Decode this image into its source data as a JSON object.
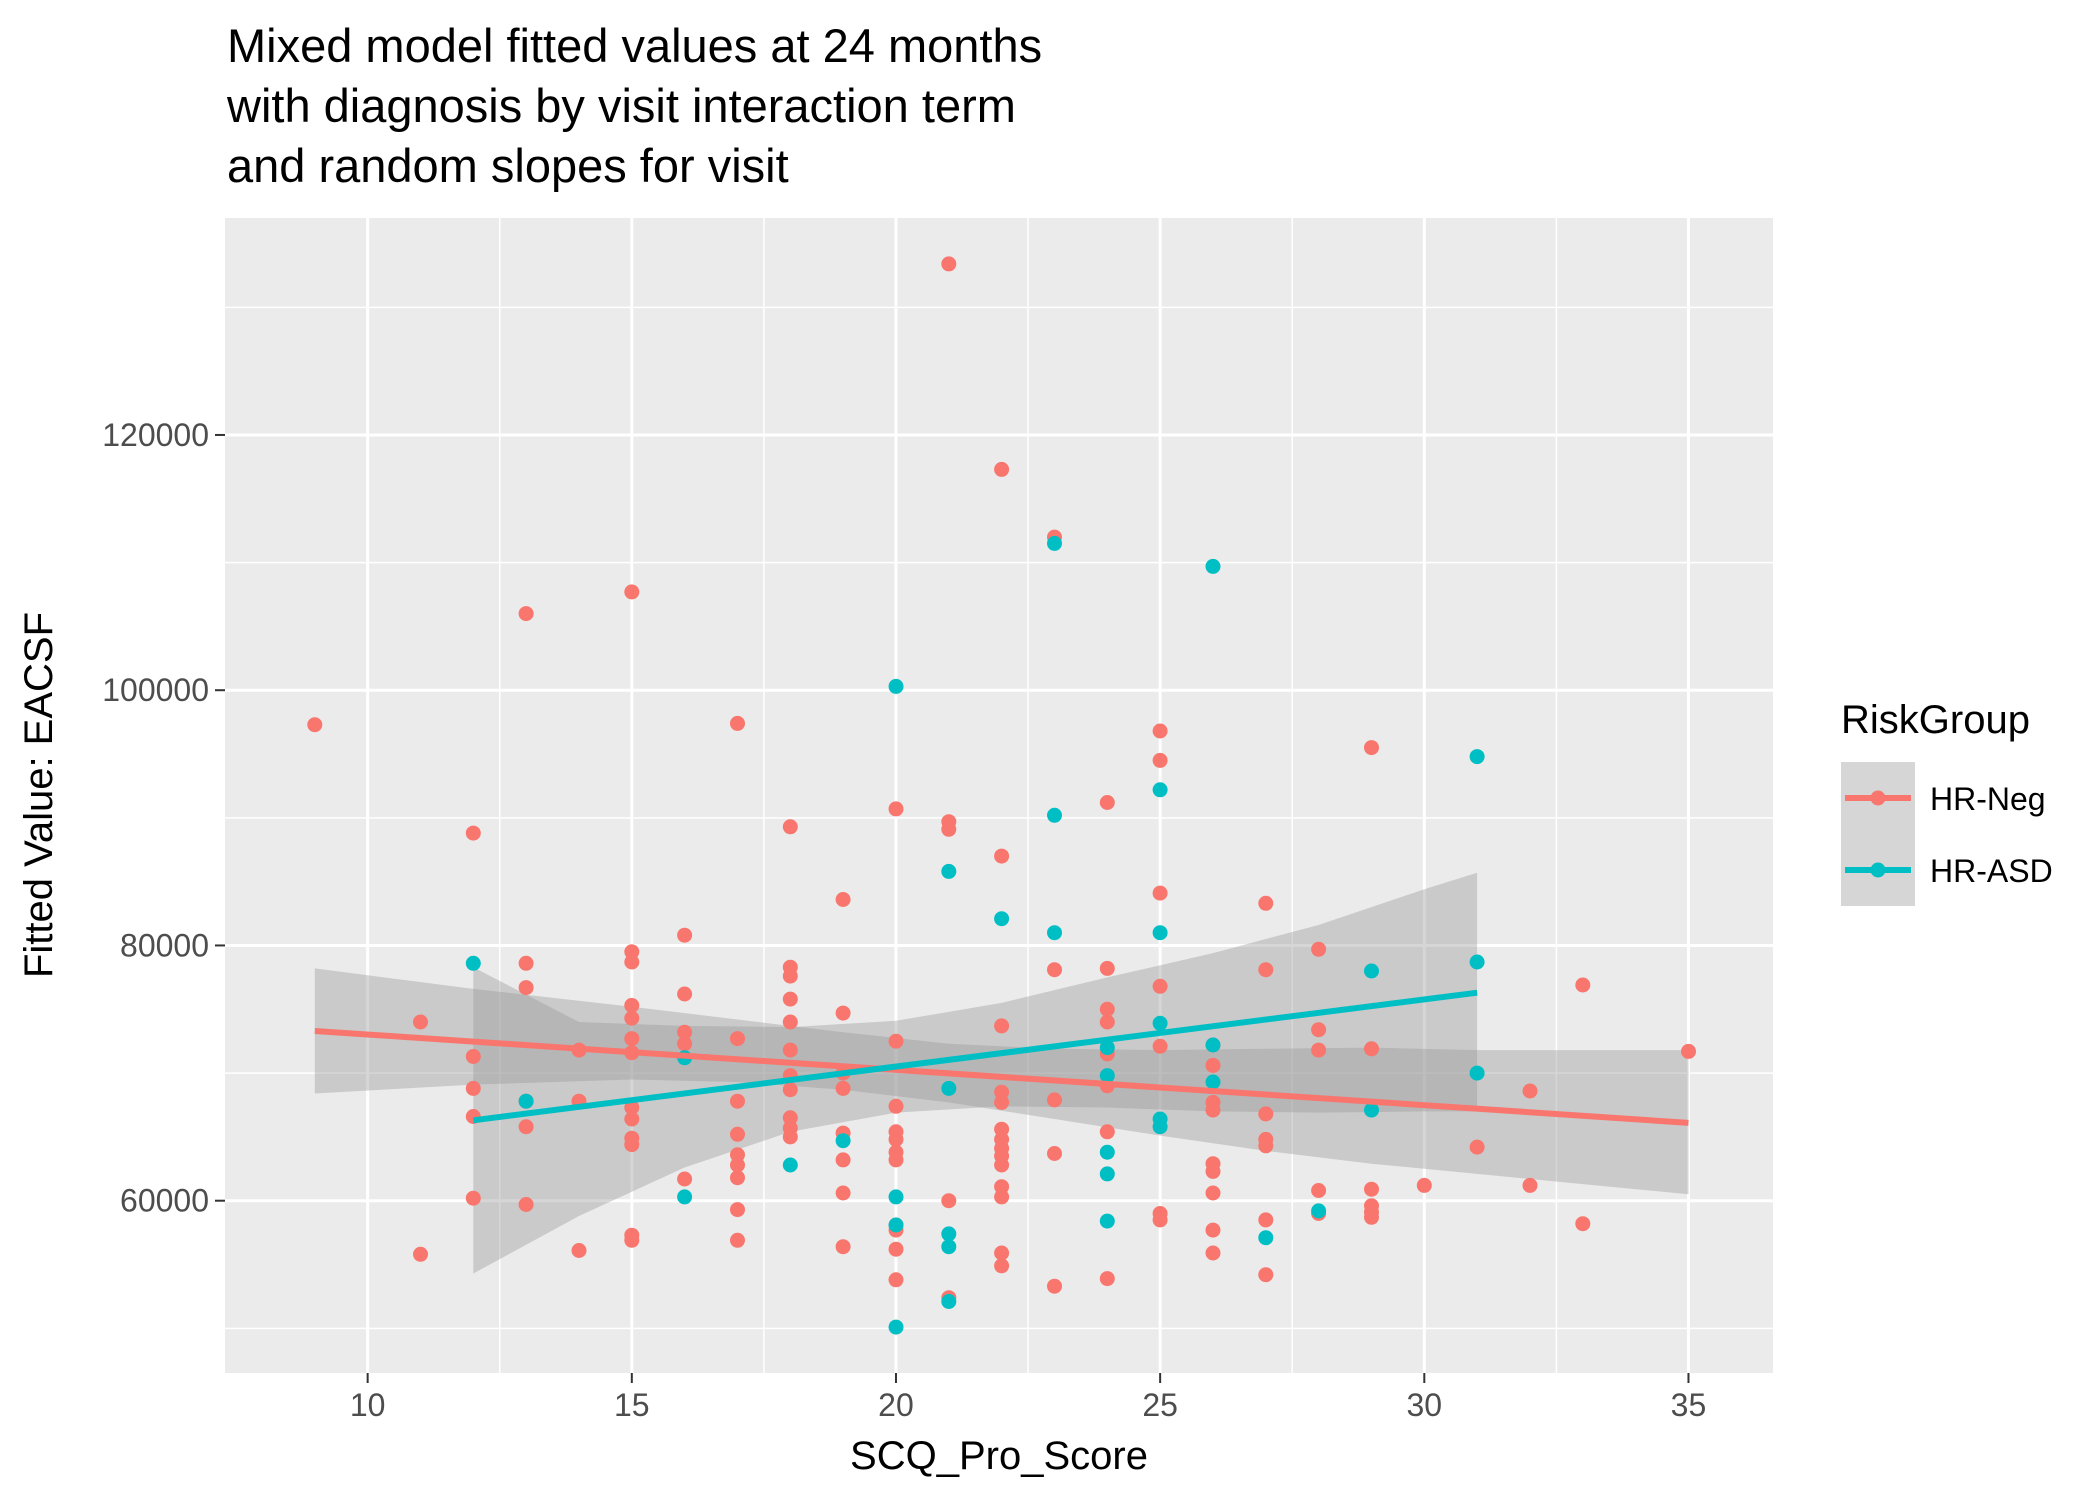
{
  "chart_data": {
    "type": "scatter",
    "title": "Mixed model fitted values at 24 months\nwith diagnosis by visit interaction term\nand random slopes for visit",
    "xlabel": "SCQ_Pro_Score",
    "ylabel": "Fitted Value: EACSF",
    "xlim": [
      7.3,
      36.6
    ],
    "ylim": [
      46500,
      137000
    ],
    "x_ticks": [
      10,
      15,
      20,
      25,
      30,
      35
    ],
    "y_ticks": [
      60000,
      80000,
      100000,
      120000
    ],
    "grid": true,
    "legend": {
      "title": "RiskGroup",
      "position": "right",
      "entries": [
        "HR-Neg",
        "HR-ASD"
      ]
    },
    "colors": {
      "HR-Neg": "#F8766D",
      "HR-ASD": "#00BFC4",
      "panel": "#EBEBEB",
      "grid": "#FFFFFF",
      "ribbon": "#999999"
    },
    "series": [
      {
        "name": "HR-Neg",
        "points": [
          [
            9,
            97300
          ],
          [
            11,
            74000
          ],
          [
            11,
            55800
          ],
          [
            12,
            88800
          ],
          [
            12,
            71300
          ],
          [
            12,
            68800
          ],
          [
            12,
            66600
          ],
          [
            12,
            60200
          ],
          [
            13,
            106000
          ],
          [
            13,
            78600
          ],
          [
            13,
            76700
          ],
          [
            13,
            67800
          ],
          [
            13,
            65800
          ],
          [
            13,
            59700
          ],
          [
            14,
            71800
          ],
          [
            14,
            67800
          ],
          [
            14,
            56100
          ],
          [
            15,
            107700
          ],
          [
            15,
            79500
          ],
          [
            15,
            78700
          ],
          [
            15,
            75300
          ],
          [
            15,
            74300
          ],
          [
            15,
            72700
          ],
          [
            15,
            71600
          ],
          [
            15,
            67300
          ],
          [
            15,
            66400
          ],
          [
            15,
            64900
          ],
          [
            15,
            64400
          ],
          [
            15,
            57300
          ],
          [
            15,
            56900
          ],
          [
            16,
            80800
          ],
          [
            16,
            76200
          ],
          [
            16,
            73200
          ],
          [
            16,
            72300
          ],
          [
            16,
            61700
          ],
          [
            17,
            97400
          ],
          [
            17,
            72700
          ],
          [
            17,
            67800
          ],
          [
            17,
            65200
          ],
          [
            17,
            63600
          ],
          [
            17,
            62800
          ],
          [
            17,
            61800
          ],
          [
            17,
            59300
          ],
          [
            17,
            56900
          ],
          [
            18,
            89300
          ],
          [
            18,
            78300
          ],
          [
            18,
            77600
          ],
          [
            18,
            75800
          ],
          [
            18,
            74000
          ],
          [
            18,
            71800
          ],
          [
            18,
            69800
          ],
          [
            18,
            68700
          ],
          [
            18,
            66500
          ],
          [
            18,
            65700
          ],
          [
            18,
            65000
          ],
          [
            19,
            83600
          ],
          [
            19,
            74700
          ],
          [
            19,
            70000
          ],
          [
            19,
            68800
          ],
          [
            19,
            65300
          ],
          [
            19,
            63200
          ],
          [
            19,
            60600
          ],
          [
            19,
            56400
          ],
          [
            20,
            90700
          ],
          [
            20,
            72500
          ],
          [
            20,
            67400
          ],
          [
            20,
            65400
          ],
          [
            20,
            64800
          ],
          [
            20,
            63800
          ],
          [
            20,
            63200
          ],
          [
            20,
            58100
          ],
          [
            20,
            57700
          ],
          [
            20,
            56200
          ],
          [
            20,
            53800
          ],
          [
            21,
            133400
          ],
          [
            21,
            89700
          ],
          [
            21,
            89100
          ],
          [
            21,
            60000
          ],
          [
            21,
            52400
          ],
          [
            22,
            117300
          ],
          [
            22,
            87000
          ],
          [
            22,
            73700
          ],
          [
            22,
            68500
          ],
          [
            22,
            67700
          ],
          [
            22,
            65600
          ],
          [
            22,
            64800
          ],
          [
            22,
            64100
          ],
          [
            22,
            63500
          ],
          [
            22,
            62800
          ],
          [
            22,
            61100
          ],
          [
            22,
            60300
          ],
          [
            22,
            55900
          ],
          [
            22,
            54900
          ],
          [
            23,
            112000
          ],
          [
            23,
            78100
          ],
          [
            23,
            67900
          ],
          [
            23,
            63700
          ],
          [
            23,
            53300
          ],
          [
            24,
            91200
          ],
          [
            24,
            78200
          ],
          [
            24,
            75000
          ],
          [
            24,
            74000
          ],
          [
            24,
            71500
          ],
          [
            24,
            69000
          ],
          [
            24,
            65400
          ],
          [
            24,
            53900
          ],
          [
            25,
            96800
          ],
          [
            25,
            94500
          ],
          [
            25,
            84100
          ],
          [
            25,
            76800
          ],
          [
            25,
            72100
          ],
          [
            25,
            59000
          ],
          [
            25,
            58500
          ],
          [
            26,
            72200
          ],
          [
            26,
            70600
          ],
          [
            26,
            67700
          ],
          [
            26,
            67100
          ],
          [
            26,
            62900
          ],
          [
            26,
            62300
          ],
          [
            26,
            60600
          ],
          [
            26,
            57700
          ],
          [
            26,
            55900
          ],
          [
            27,
            83300
          ],
          [
            27,
            78100
          ],
          [
            27,
            66800
          ],
          [
            27,
            64800
          ],
          [
            27,
            64300
          ],
          [
            27,
            58500
          ],
          [
            27,
            54200
          ],
          [
            28,
            79700
          ],
          [
            28,
            73400
          ],
          [
            28,
            71800
          ],
          [
            28,
            60800
          ],
          [
            28,
            59000
          ],
          [
            29,
            95500
          ],
          [
            29,
            71900
          ],
          [
            29,
            60900
          ],
          [
            29,
            59600
          ],
          [
            29,
            59100
          ],
          [
            29,
            58700
          ],
          [
            30,
            61200
          ],
          [
            31,
            64200
          ],
          [
            32,
            68600
          ],
          [
            32,
            61200
          ],
          [
            33,
            76900
          ],
          [
            33,
            58200
          ],
          [
            35,
            71700
          ]
        ],
        "trend": {
          "x": [
            9,
            35
          ],
          "y": [
            73300,
            66100
          ]
        },
        "ribbon": {
          "x": [
            9,
            12,
            15,
            17,
            19,
            21,
            23,
            25,
            27,
            29,
            31,
            33,
            35
          ],
          "lower": [
            68400,
            69100,
            69500,
            69300,
            68700,
            67700,
            66400,
            65100,
            63900,
            62900,
            62100,
            61300,
            60500
          ],
          "upper": [
            78200,
            76600,
            75200,
            74200,
            73200,
            72300,
            71900,
            71800,
            71900,
            72000,
            71800,
            71800,
            71800
          ]
        }
      },
      {
        "name": "HR-ASD",
        "points": [
          [
            12,
            78600
          ],
          [
            13,
            67800
          ],
          [
            16,
            71200
          ],
          [
            16,
            60300
          ],
          [
            18,
            62800
          ],
          [
            19,
            64700
          ],
          [
            20,
            100300
          ],
          [
            20,
            60300
          ],
          [
            20,
            58100
          ],
          [
            20,
            50100
          ],
          [
            21,
            85800
          ],
          [
            21,
            68800
          ],
          [
            21,
            57400
          ],
          [
            21,
            56400
          ],
          [
            21,
            52100
          ],
          [
            22,
            82100
          ],
          [
            23,
            111500
          ],
          [
            23,
            90200
          ],
          [
            23,
            81000
          ],
          [
            24,
            72000
          ],
          [
            24,
            69800
          ],
          [
            24,
            63800
          ],
          [
            24,
            62100
          ],
          [
            24,
            58400
          ],
          [
            25,
            92200
          ],
          [
            25,
            81000
          ],
          [
            25,
            73900
          ],
          [
            25,
            66400
          ],
          [
            25,
            65800
          ],
          [
            26,
            109700
          ],
          [
            26,
            72200
          ],
          [
            26,
            69300
          ],
          [
            27,
            57100
          ],
          [
            28,
            59200
          ],
          [
            29,
            78000
          ],
          [
            29,
            67100
          ],
          [
            31,
            94800
          ],
          [
            31,
            78700
          ],
          [
            31,
            70000
          ]
        ],
        "trend": {
          "x": [
            12,
            31
          ],
          "y": [
            66300,
            76300
          ]
        },
        "ribbon": {
          "x": [
            12,
            14,
            16,
            18,
            20,
            22,
            24,
            26,
            28,
            30,
            31
          ],
          "lower": [
            54300,
            58800,
            62600,
            65400,
            66900,
            67400,
            67300,
            67000,
            66900,
            67000,
            67000
          ],
          "upper": [
            78300,
            74000,
            73700,
            73600,
            74100,
            75500,
            77500,
            79400,
            81600,
            84400,
            85700
          ]
        }
      }
    ]
  }
}
